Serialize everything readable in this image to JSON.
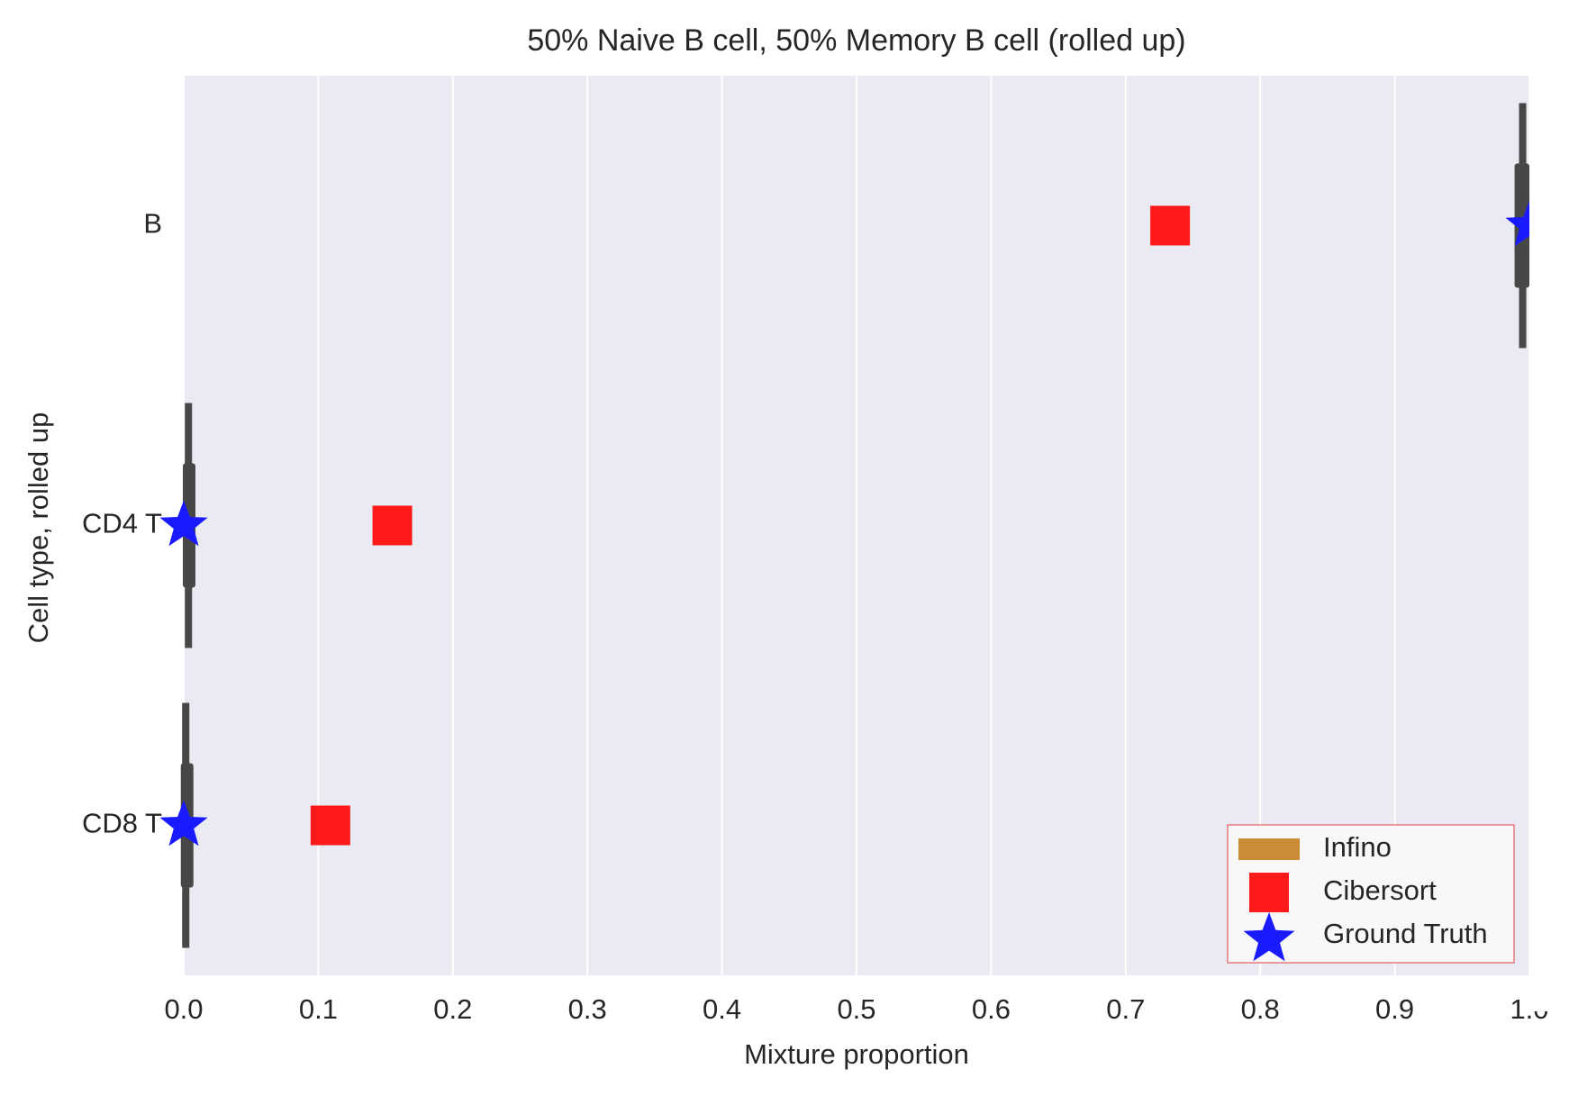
{
  "chart_data": {
    "type": "box",
    "title": "50% Naive B cell, 50% Memory B cell (rolled up)",
    "x_label": "Mixture proportion",
    "y_label": "Cell type, rolled up",
    "categories": [
      "B",
      "CD4 T",
      "CD8 T"
    ],
    "xlim": [
      0,
      1
    ],
    "xticks": [
      {
        "value": 0,
        "label": "0.0"
      },
      0.1,
      0.2,
      0.3,
      0.4,
      0.5,
      0.6,
      0.7,
      0.8,
      0.9,
      {
        "value": 1,
        "label": "1.0"
      }
    ],
    "grid": true,
    "background": "#eaeaf2",
    "legend": "lower right",
    "series": [
      {
        "name": "Infino",
        "type": "box",
        "color": "#cc8c35",
        "box_color": "#474747",
        "low": [
          0.993,
          0.001,
          0.0
        ],
        "high": [
          0.997,
          0.006,
          0.003
        ],
        "q1": [
          0.989,
          0.0,
          0.0
        ],
        "q3": [
          1.0,
          0.008,
          0.005
        ],
        "values": [
          0.995,
          0.003,
          0.002
        ]
      },
      {
        "name": "Cibersort",
        "type": "square",
        "color": "#ff1a1a",
        "values": [
          0.733,
          0.155,
          0.109
        ]
      },
      {
        "name": "Ground Truth",
        "type": "star",
        "color": "#1a1aff",
        "values": [
          1.0,
          0.0,
          0.0
        ]
      }
    ]
  }
}
